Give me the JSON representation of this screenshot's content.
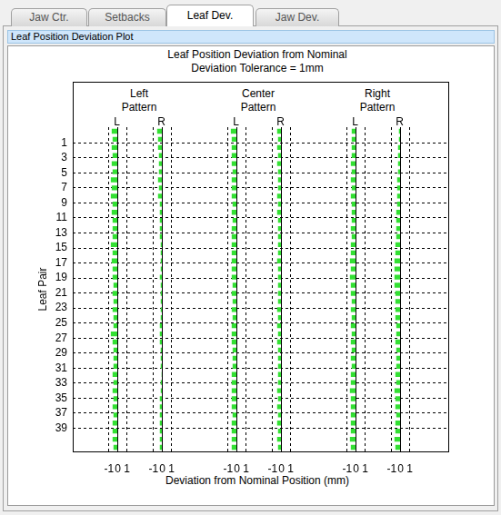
{
  "tabs": [
    "Jaw Ctr.",
    "Setbacks",
    "Leaf Dev.",
    "Jaw Dev."
  ],
  "active_tab": "Leaf Dev.",
  "panel_title": "Leaf Position Deviation Plot",
  "chart_data": {
    "type": "bar",
    "orientation": "horizontal",
    "title": "Leaf Position Deviation from Nominal",
    "subtitle": "Deviation Tolerance = 1mm",
    "x_label": "Deviation from Nominal Position (mm)",
    "y_label": "Leaf Pair",
    "categories": [
      1,
      null,
      3,
      null,
      5,
      null,
      7,
      null,
      9,
      null,
      11,
      null,
      13,
      null,
      15,
      null,
      17,
      null,
      19,
      null,
      21,
      null,
      23,
      null,
      25,
      null,
      27,
      null,
      29,
      null,
      31,
      null,
      33,
      null,
      35,
      null,
      37,
      null,
      39,
      null
    ],
    "xlim": [
      -1.5,
      1.5
    ],
    "xticks": [
      -1,
      0,
      1
    ],
    "grid": true,
    "panels": [
      {
        "title": "Left Pattern",
        "series": [
          {
            "name": "L",
            "color": "#33e033",
            "values": [
              -0.7,
              -0.6,
              -0.7,
              -0.6,
              -0.7,
              -0.6,
              -0.8,
              -0.7,
              -0.8,
              -0.6,
              -0.7,
              -0.6,
              -0.6,
              -0.6,
              -0.8,
              -0.6,
              -0.7,
              -0.6,
              -0.6,
              -0.5,
              -0.6,
              -0.5,
              -0.6,
              -0.5,
              -0.5,
              -0.8,
              -0.6,
              -0.5,
              -0.5,
              -0.5,
              -0.6,
              -0.5,
              -0.6,
              -0.5,
              -0.6,
              -0.5,
              -0.6,
              -0.6,
              -0.6,
              -0.5
            ]
          },
          {
            "name": "R",
            "color": "#33e033",
            "values": [
              -0.6,
              -0.5,
              -0.5,
              -0.4,
              -0.4,
              -0.4,
              -0.5,
              -0.4,
              -0.5,
              -0.3,
              -0.3,
              -0.3,
              -0.3,
              -0.3,
              -0.2,
              -0.2,
              -0.2,
              -0.2,
              -0.3,
              -0.2,
              -0.2,
              -0.2,
              -0.2,
              -0.2,
              -0.3,
              -0.3,
              -0.3,
              -0.2,
              -0.2,
              -0.2,
              -0.1,
              -0.2,
              -0.2,
              -0.3,
              -0.3,
              -0.3,
              -0.3,
              -0.3,
              -0.3,
              -0.3
            ]
          }
        ]
      },
      {
        "title": "Center Pattern",
        "series": [
          {
            "name": "L",
            "color": "#33e033",
            "values": [
              -0.7,
              -0.6,
              -0.6,
              -0.6,
              -0.6,
              -0.5,
              -0.6,
              -0.6,
              -0.6,
              -0.5,
              -0.6,
              -0.5,
              -0.6,
              -0.6,
              -0.6,
              -0.6,
              -0.6,
              -0.6,
              -0.6,
              -0.5,
              -0.6,
              -0.5,
              -0.6,
              -0.5,
              -0.6,
              -0.6,
              -0.6,
              -0.5,
              -0.5,
              -0.5,
              -0.6,
              -0.6,
              -0.6,
              -0.6,
              -0.6,
              -0.5,
              -0.6,
              -0.6,
              -0.6,
              -0.6
            ]
          },
          {
            "name": "R",
            "color": "#33e033",
            "values": [
              -0.5,
              -0.4,
              -0.5,
              -0.4,
              -0.5,
              -0.4,
              -0.4,
              -0.4,
              -0.5,
              -0.4,
              -0.5,
              -0.4,
              -0.4,
              -0.4,
              -0.4,
              -0.4,
              -0.5,
              -0.4,
              -0.4,
              -0.4,
              -0.4,
              -0.4,
              -0.5,
              -0.4,
              -0.5,
              -0.4,
              -0.5,
              -0.4,
              -0.4,
              -0.4,
              -0.4,
              -0.4,
              -0.5,
              -0.4,
              -0.5,
              -0.4,
              -0.5,
              -0.4,
              -0.5,
              -0.4
            ]
          }
        ]
      },
      {
        "title": "Right Pattern",
        "series": [
          {
            "name": "L",
            "color": "#33e033",
            "values": [
              -0.5,
              -0.5,
              -0.5,
              -0.5,
              -0.6,
              -0.5,
              -0.6,
              -0.5,
              -0.6,
              -0.5,
              -0.5,
              -0.5,
              -0.6,
              -0.5,
              -0.6,
              -0.6,
              -0.7,
              -0.6,
              -0.7,
              -0.6,
              -0.6,
              -0.5,
              -0.6,
              -0.5,
              -0.6,
              -0.5,
              -0.6,
              -0.5,
              -0.6,
              -0.5,
              -0.6,
              -0.6,
              -0.7,
              -0.6,
              -0.6,
              -0.6,
              -0.6,
              -0.6,
              -0.7,
              -0.6
            ]
          },
          {
            "name": "R",
            "color": "#33e033",
            "values": [
              -0.2,
              -0.2,
              -0.3,
              -0.3,
              -0.3,
              -0.3,
              -0.4,
              -0.4,
              -0.4,
              -0.4,
              -0.5,
              -0.5,
              -0.5,
              -0.5,
              -0.6,
              -0.6,
              -0.7,
              -0.7,
              -0.7,
              -0.7,
              -0.6,
              -0.6,
              -0.6,
              -0.6,
              -0.5,
              -0.5,
              -0.6,
              -0.5,
              -0.5,
              -0.5,
              -0.6,
              -0.5,
              -0.7,
              -0.6,
              -0.6,
              -0.5,
              -0.6,
              -0.6,
              -0.7,
              -0.6
            ]
          }
        ]
      }
    ]
  }
}
